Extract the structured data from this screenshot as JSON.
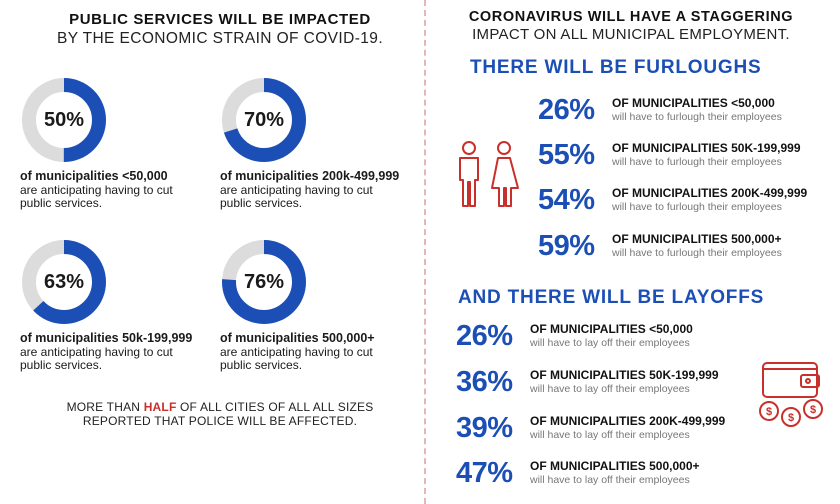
{
  "left": {
    "title_line1": "PUBLIC SERVICES WILL BE IMPACTED",
    "title_line2": "BY THE ECONOMIC STRAIN OF COVID-19.",
    "stats": [
      {
        "pct_label": "50%",
        "value": 50,
        "bold": "of municipalities <50,000",
        "line2": "are anticipating having to cut",
        "line3": "public services."
      },
      {
        "pct_label": "70%",
        "value": 70,
        "bold": "of municipalities 200k-499,999",
        "line2": "are anticipating having to cut",
        "line3": "public services."
      },
      {
        "pct_label": "63%",
        "value": 63,
        "bold": "of municipalities 50k-199,999",
        "line2": "are anticipating having to cut",
        "line3": "public services."
      },
      {
        "pct_label": "76%",
        "value": 76,
        "bold": "of municipalities 500,000+",
        "line2": "are anticipating having to cut",
        "line3": "public services."
      }
    ],
    "police_pre": "MORE THAN ",
    "police_half": "HALF",
    "police_post": " OF ALL CITIES OF ALL ALL SIZES",
    "police_line2": "REPORTED THAT POLICE WILL BE AFFECTED."
  },
  "right": {
    "title_line1": "CORONAVIRUS WILL HAVE A STAGGERING",
    "title_line2": "IMPACT ON ALL MUNICIPAL EMPLOYMENT.",
    "furloughs_heading": "THERE WILL BE FURLOUGHS",
    "furloughs": [
      {
        "pct": "26%",
        "label": "OF MUNICIPALITIES <50,000",
        "sub": "will have to furlough their employees"
      },
      {
        "pct": "55%",
        "label": "OF MUNICIPALITIES 50K-199,999",
        "sub": "will have to furlough their employees"
      },
      {
        "pct": "54%",
        "label": "OF MUNICIPALITIES 200K-499,999",
        "sub": "will have to furlough their employees"
      },
      {
        "pct": "59%",
        "label": "OF MUNICIPALITIES 500,000+",
        "sub": "will have to furlough their employees"
      }
    ],
    "layoffs_heading": "AND THERE WILL BE LAYOFFS",
    "layoffs": [
      {
        "pct": "26%",
        "label": "OF MUNICIPALITIES <50,000",
        "sub": "will have to lay off their employees"
      },
      {
        "pct": "36%",
        "label": "OF MUNICIPALITIES 50K-199,999",
        "sub": "will have to lay off their employees"
      },
      {
        "pct": "39%",
        "label": "OF MUNICIPALITIES 200K-499,999",
        "sub": "will have to lay off their employees"
      },
      {
        "pct": "47%",
        "label": "OF MUNICIPALITIES 500,000+",
        "sub": "will have to lay off their employees"
      }
    ]
  },
  "colors": {
    "blue": "#1c4fb5",
    "red": "#c9302c",
    "ring_bg": "#dcdcdc"
  }
}
